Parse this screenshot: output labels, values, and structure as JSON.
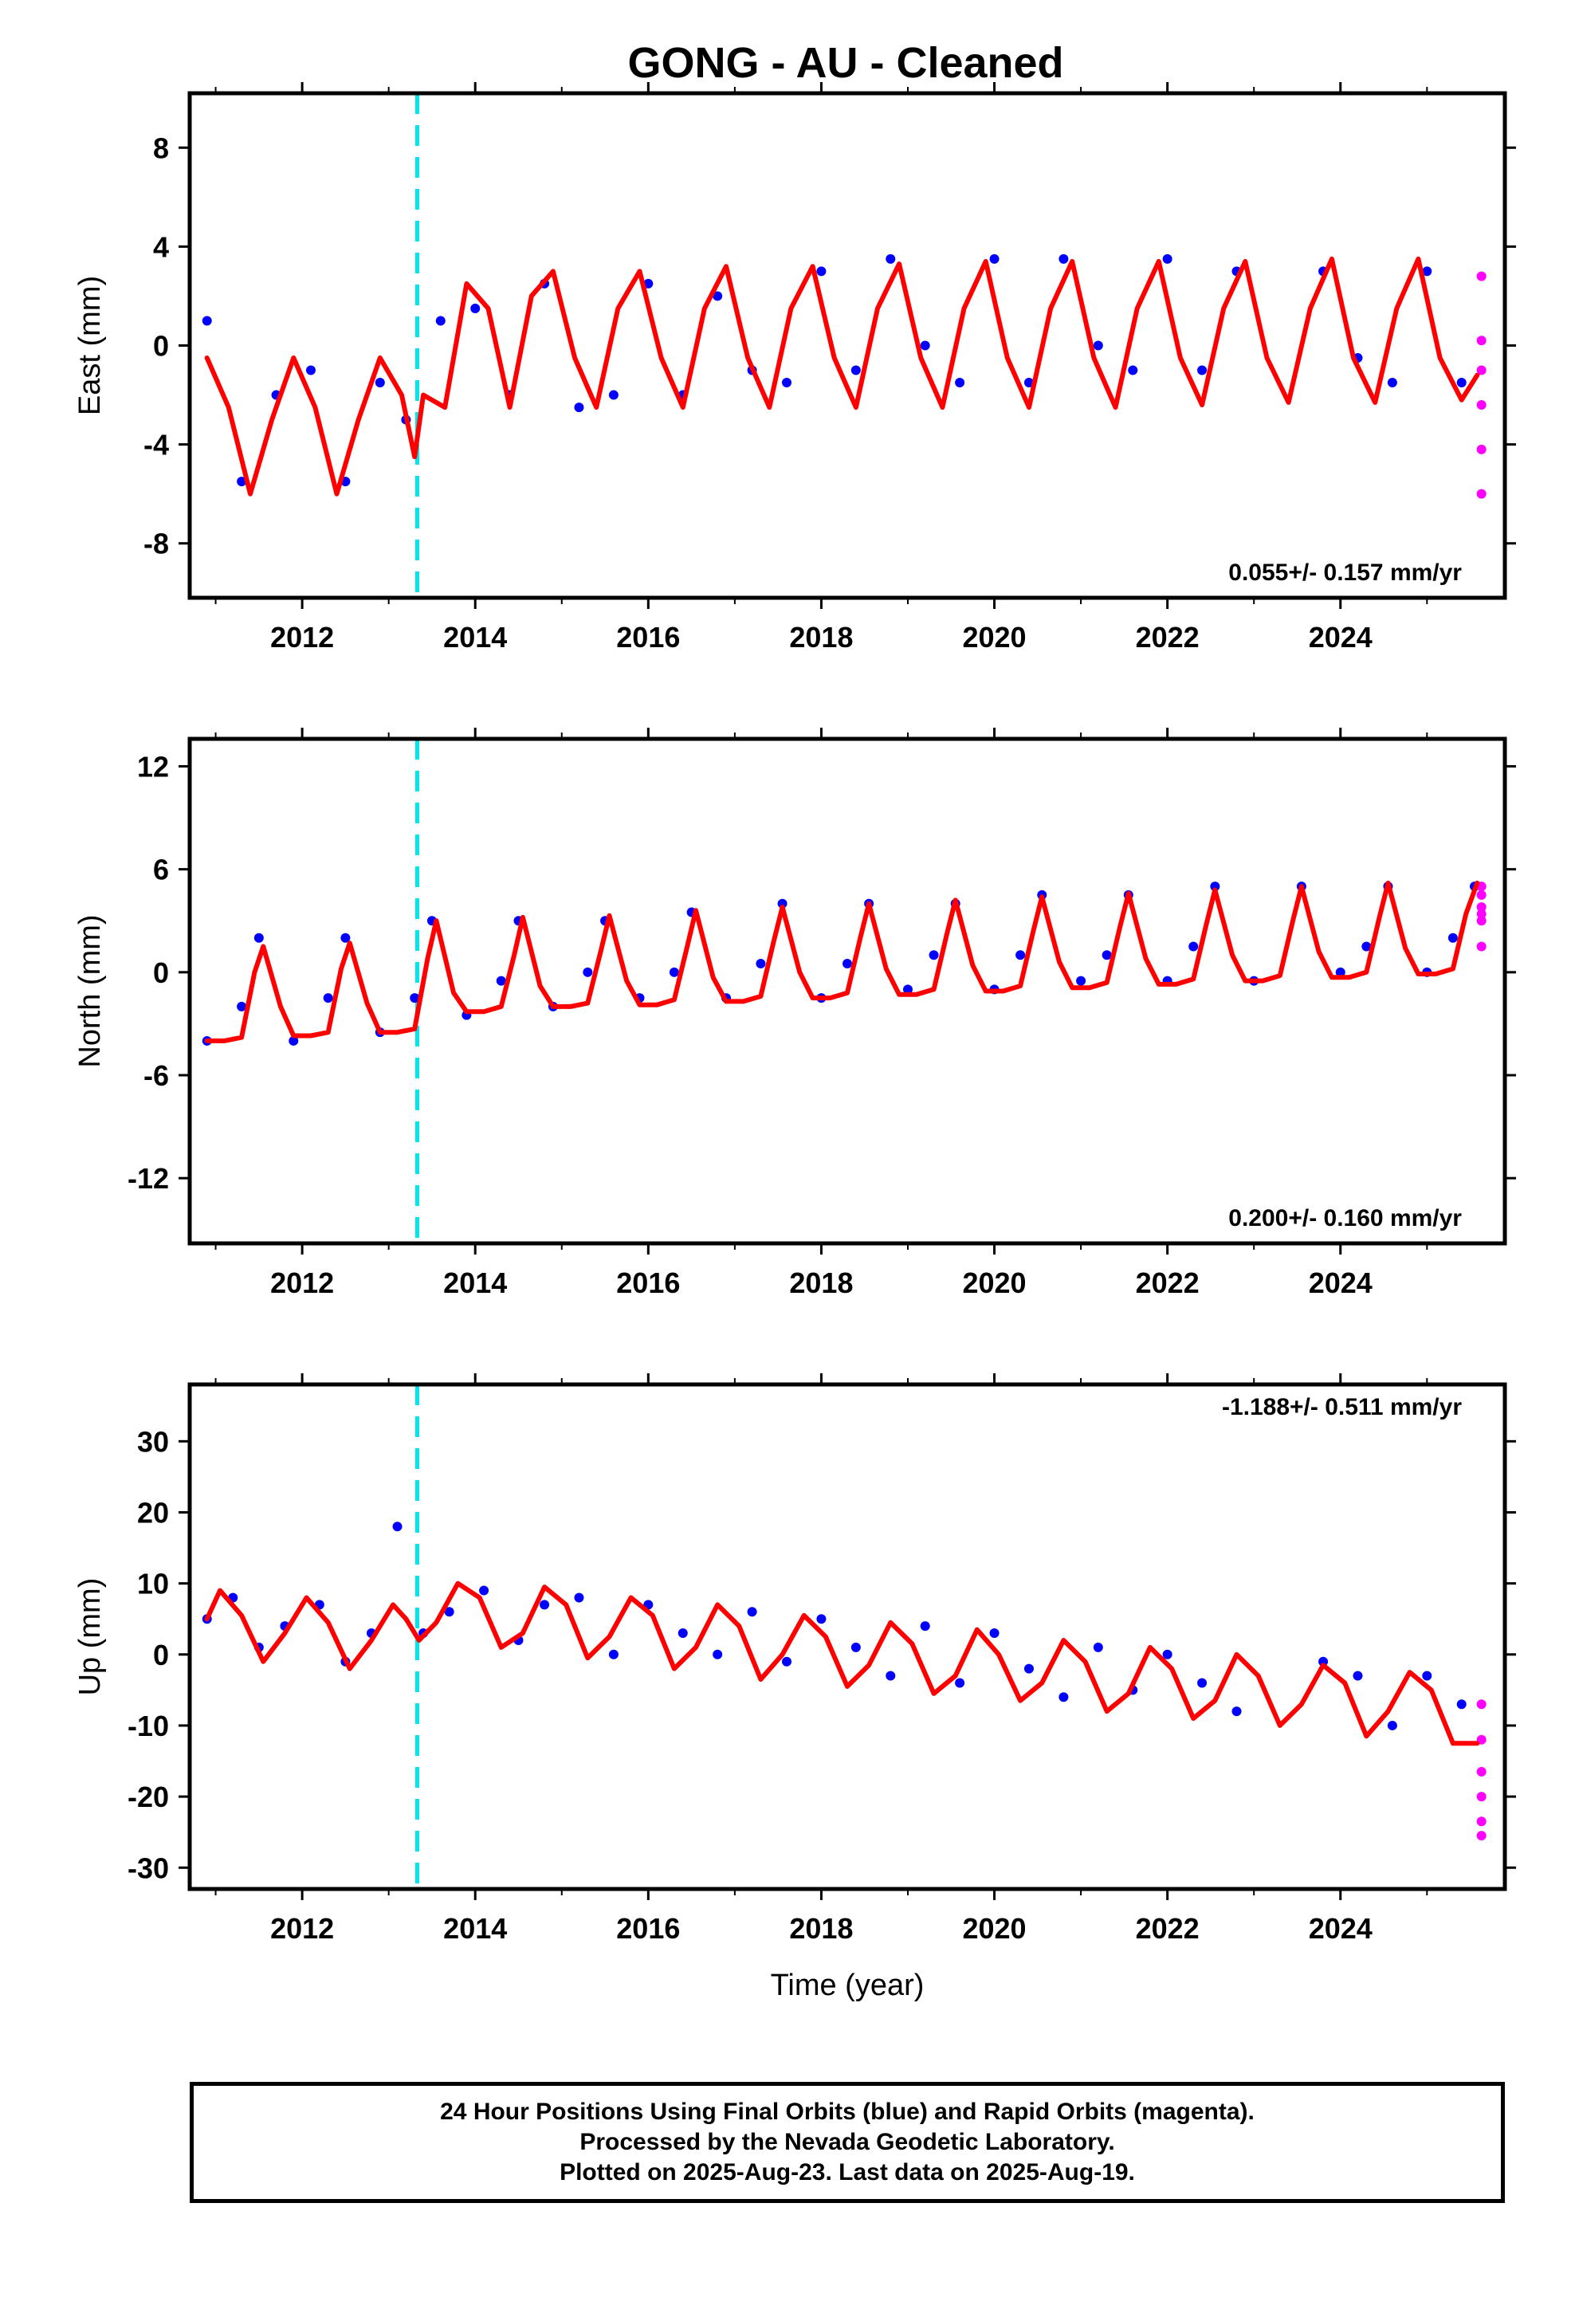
{
  "chart_data": [
    {
      "type": "scatter",
      "title": "GONG  - AU - Cleaned",
      "ylabel": "East (mm)",
      "xlabel": "",
      "xlim": [
        2010.7,
        2025.9
      ],
      "ylim": [
        -10.2,
        10.2
      ],
      "xticks": [
        2012,
        2014,
        2016,
        2018,
        2020,
        2022,
        2024
      ],
      "yticks": [
        -8,
        -4,
        0,
        4,
        8
      ],
      "rate_text": "0.055+/- 0.157 mm/yr",
      "rate_position": "bottom-right",
      "event_line_x": 2013.33,
      "series": [
        {
          "name": "Final Orbits",
          "color": "#0000ff",
          "kind": "points",
          "x": [
            2010.9,
            2011.3,
            2011.7,
            2012.1,
            2012.5,
            2012.9,
            2013.2,
            2013.6,
            2014.0,
            2014.4,
            2014.8,
            2015.2,
            2015.6,
            2016.0,
            2016.4,
            2016.8,
            2017.2,
            2017.6,
            2018.0,
            2018.4,
            2018.8,
            2019.2,
            2019.6,
            2020.0,
            2020.4,
            2020.8,
            2021.2,
            2021.6,
            2022.0,
            2022.4,
            2022.8,
            2023.8,
            2024.2,
            2024.6,
            2025.0,
            2025.4
          ],
          "y": [
            1.0,
            -5.5,
            -2.0,
            -1.0,
            -5.5,
            -1.5,
            -3.0,
            1.0,
            1.5,
            -2.0,
            2.5,
            -2.5,
            -2.0,
            2.5,
            -2.0,
            2.0,
            -1.0,
            -1.5,
            3.0,
            -1.0,
            3.5,
            0.0,
            -1.5,
            3.5,
            -1.5,
            3.5,
            0.0,
            -1.0,
            3.5,
            -1.0,
            3.0,
            3.0,
            -0.5,
            -1.5,
            3.0,
            -1.5
          ]
        },
        {
          "name": "Rapid Orbits",
          "color": "#ff00ff",
          "kind": "points",
          "x": [
            2025.63,
            2025.63,
            2025.63,
            2025.63,
            2025.63,
            2025.63
          ],
          "y": [
            2.8,
            0.2,
            -1.0,
            -2.4,
            -4.2,
            -6.0
          ]
        },
        {
          "name": "Model",
          "color": "#ff0000",
          "kind": "line",
          "x": [
            2010.9,
            2011.15,
            2011.4,
            2011.65,
            2011.9,
            2012.15,
            2012.4,
            2012.65,
            2012.9,
            2013.15,
            2013.3,
            2013.4,
            2013.65,
            2013.9,
            2014.15,
            2014.4,
            2014.65,
            2014.9,
            2015.15,
            2015.4,
            2015.65,
            2015.9,
            2016.15,
            2016.4,
            2016.65,
            2016.9,
            2017.15,
            2017.4,
            2017.65,
            2017.9,
            2018.15,
            2018.4,
            2018.65,
            2018.9,
            2019.15,
            2019.4,
            2019.65,
            2019.9,
            2020.15,
            2020.4,
            2020.65,
            2020.9,
            2021.15,
            2021.4,
            2021.65,
            2021.9,
            2022.15,
            2022.4,
            2022.65,
            2022.9,
            2023.15,
            2023.4,
            2023.65,
            2023.9,
            2024.15,
            2024.4,
            2024.65,
            2024.9,
            2025.15,
            2025.4,
            2025.58
          ],
          "y": [
            -0.5,
            -2.5,
            -6.0,
            -3.0,
            -0.5,
            -2.5,
            -6.0,
            -3.0,
            -0.5,
            -2.0,
            -4.5,
            -2.0,
            -2.5,
            2.5,
            1.5,
            -2.5,
            2.0,
            3.0,
            -0.5,
            -2.5,
            1.5,
            3.0,
            -0.5,
            -2.5,
            1.5,
            3.2,
            -0.5,
            -2.5,
            1.5,
            3.2,
            -0.5,
            -2.5,
            1.5,
            3.3,
            -0.5,
            -2.5,
            1.5,
            3.4,
            -0.5,
            -2.5,
            1.5,
            3.4,
            -0.5,
            -2.5,
            1.5,
            3.4,
            -0.5,
            -2.4,
            1.5,
            3.4,
            -0.5,
            -2.3,
            1.5,
            3.5,
            -0.5,
            -2.3,
            1.5,
            3.5,
            -0.5,
            -2.2,
            -1.2
          ]
        }
      ]
    },
    {
      "type": "scatter",
      "title": "",
      "ylabel": "North (mm)",
      "xlabel": "",
      "xlim": [
        2010.7,
        2025.9
      ],
      "ylim": [
        -15.8,
        13.6
      ],
      "xticks": [
        2012,
        2014,
        2016,
        2018,
        2020,
        2022,
        2024
      ],
      "yticks": [
        -12,
        -6,
        0,
        6,
        12
      ],
      "rate_text": "0.200+/- 0.160 mm/yr",
      "rate_position": "bottom-right",
      "event_line_x": 2013.33,
      "series": [
        {
          "name": "Final Orbits",
          "color": "#0000ff",
          "kind": "points",
          "x": [
            2010.9,
            2011.3,
            2011.5,
            2011.9,
            2012.3,
            2012.5,
            2012.9,
            2013.3,
            2013.5,
            2013.9,
            2014.3,
            2014.5,
            2014.9,
            2015.3,
            2015.5,
            2015.9,
            2016.3,
            2016.5,
            2016.9,
            2017.3,
            2017.55,
            2018.0,
            2018.3,
            2018.55,
            2019.0,
            2019.3,
            2019.55,
            2020.0,
            2020.3,
            2020.55,
            2021.0,
            2021.3,
            2021.55,
            2022.0,
            2022.3,
            2022.55,
            2023.0,
            2023.55,
            2024.0,
            2024.3,
            2024.55,
            2025.0,
            2025.3,
            2025.55
          ],
          "y": [
            -4.0,
            -2.0,
            2.0,
            -4.0,
            -1.5,
            2.0,
            -3.5,
            -1.5,
            3.0,
            -2.5,
            -0.5,
            3.0,
            -2.0,
            0.0,
            3.0,
            -1.5,
            0.0,
            3.5,
            -1.5,
            0.5,
            4.0,
            -1.5,
            0.5,
            4.0,
            -1.0,
            1.0,
            4.0,
            -1.0,
            1.0,
            4.5,
            -0.5,
            1.0,
            4.5,
            -0.5,
            1.5,
            5.0,
            -0.5,
            5.0,
            0.0,
            1.5,
            5.0,
            0.0,
            2.0,
            5.0
          ]
        },
        {
          "name": "Rapid Orbits",
          "color": "#ff00ff",
          "kind": "points",
          "x": [
            2025.63,
            2025.63,
            2025.63,
            2025.63,
            2025.63,
            2025.63
          ],
          "y": [
            5.0,
            4.5,
            3.8,
            3.4,
            3.0,
            1.5
          ]
        },
        {
          "name": "Model",
          "color": "#ff0000",
          "kind": "line",
          "x": [
            2010.9,
            2011.1,
            2011.3,
            2011.45,
            2011.55,
            2011.75,
            2011.9,
            2012.1,
            2012.3,
            2012.45,
            2012.55,
            2012.75,
            2012.9,
            2013.1,
            2013.3,
            2013.45,
            2013.55,
            2013.75,
            2013.9,
            2014.1,
            2014.3,
            2014.45,
            2014.55,
            2014.75,
            2014.9,
            2015.1,
            2015.3,
            2015.45,
            2015.55,
            2015.75,
            2015.9,
            2016.1,
            2016.3,
            2016.45,
            2016.55,
            2016.75,
            2016.9,
            2017.1,
            2017.3,
            2017.45,
            2017.55,
            2017.75,
            2017.9,
            2018.1,
            2018.3,
            2018.45,
            2018.55,
            2018.75,
            2018.9,
            2019.1,
            2019.3,
            2019.45,
            2019.55,
            2019.75,
            2019.9,
            2020.1,
            2020.3,
            2020.45,
            2020.55,
            2020.75,
            2020.9,
            2021.1,
            2021.3,
            2021.45,
            2021.55,
            2021.75,
            2021.9,
            2022.1,
            2022.3,
            2022.45,
            2022.55,
            2022.75,
            2022.9,
            2023.1,
            2023.3,
            2023.45,
            2023.55,
            2023.75,
            2023.9,
            2024.1,
            2024.3,
            2024.45,
            2024.55,
            2024.75,
            2024.9,
            2025.1,
            2025.3,
            2025.45,
            2025.58
          ],
          "y": [
            -4.0,
            -4.0,
            -3.8,
            0.0,
            1.5,
            -2.0,
            -3.7,
            -3.7,
            -3.5,
            0.2,
            1.7,
            -1.8,
            -3.5,
            -3.5,
            -3.3,
            0.8,
            3.0,
            -1.2,
            -2.3,
            -2.3,
            -2.0,
            1.0,
            3.2,
            -0.8,
            -2.0,
            -2.0,
            -1.8,
            1.2,
            3.3,
            -0.5,
            -1.9,
            -1.9,
            -1.6,
            1.5,
            3.6,
            -0.3,
            -1.7,
            -1.7,
            -1.4,
            1.8,
            3.8,
            0.0,
            -1.5,
            -1.5,
            -1.2,
            2.0,
            4.0,
            0.2,
            -1.3,
            -1.3,
            -1.0,
            2.2,
            4.2,
            0.4,
            -1.1,
            -1.1,
            -0.8,
            2.4,
            4.4,
            0.6,
            -0.9,
            -0.9,
            -0.6,
            2.6,
            4.6,
            0.8,
            -0.7,
            -0.7,
            -0.4,
            2.8,
            4.8,
            1.0,
            -0.5,
            -0.5,
            -0.2,
            3.0,
            5.0,
            1.2,
            -0.3,
            -0.3,
            0.0,
            3.2,
            5.2,
            1.4,
            -0.1,
            -0.1,
            0.2,
            3.4,
            5.2
          ]
        }
      ]
    },
    {
      "type": "scatter",
      "title": "",
      "ylabel": "Up (mm)",
      "xlabel": "Time (year)",
      "xlim": [
        2010.7,
        2025.9
      ],
      "ylim": [
        -33,
        38
      ],
      "xticks": [
        2012,
        2014,
        2016,
        2018,
        2020,
        2022,
        2024
      ],
      "yticks": [
        -30,
        -20,
        -10,
        0,
        10,
        20,
        30
      ],
      "rate_text": "-1.188+/- 0.511 mm/yr",
      "rate_position": "top-right",
      "event_line_x": 2013.33,
      "series": [
        {
          "name": "Final Orbits",
          "color": "#0000ff",
          "kind": "points",
          "x": [
            2010.9,
            2011.2,
            2011.5,
            2011.8,
            2012.2,
            2012.5,
            2012.8,
            2013.1,
            2013.4,
            2013.7,
            2014.1,
            2014.5,
            2014.8,
            2015.2,
            2015.6,
            2016.0,
            2016.4,
            2016.8,
            2017.2,
            2017.6,
            2018.0,
            2018.4,
            2018.8,
            2019.2,
            2019.6,
            2020.0,
            2020.4,
            2020.8,
            2021.2,
            2021.6,
            2022.0,
            2022.4,
            2022.8,
            2023.8,
            2024.2,
            2024.6,
            2025.0,
            2025.4
          ],
          "y": [
            5.0,
            8.0,
            1.0,
            4.0,
            7.0,
            -1.0,
            3.0,
            18.0,
            3.0,
            6.0,
            9.0,
            2.0,
            7.0,
            8.0,
            0.0,
            7.0,
            3.0,
            0.0,
            6.0,
            -1.0,
            5.0,
            1.0,
            -3.0,
            4.0,
            -4.0,
            3.0,
            -2.0,
            -6.0,
            1.0,
            -5.0,
            0.0,
            -4.0,
            -8.0,
            -1.0,
            -3.0,
            -10.0,
            -3.0,
            -7.0
          ]
        },
        {
          "name": "Rapid Orbits",
          "color": "#ff00ff",
          "kind": "points",
          "x": [
            2025.63,
            2025.63,
            2025.63,
            2025.63,
            2025.63,
            2025.63
          ],
          "y": [
            -7.0,
            -12.0,
            -16.5,
            -20.0,
            -23.5,
            -25.5
          ]
        },
        {
          "name": "Model",
          "color": "#ff0000",
          "kind": "line",
          "x": [
            2010.9,
            2011.05,
            2011.3,
            2011.55,
            2011.8,
            2012.05,
            2012.3,
            2012.55,
            2012.8,
            2013.05,
            2013.2,
            2013.35,
            2013.55,
            2013.8,
            2014.05,
            2014.3,
            2014.55,
            2014.8,
            2015.05,
            2015.3,
            2015.55,
            2015.8,
            2016.05,
            2016.3,
            2016.55,
            2016.8,
            2017.05,
            2017.3,
            2017.55,
            2017.8,
            2018.05,
            2018.3,
            2018.55,
            2018.8,
            2019.05,
            2019.3,
            2019.55,
            2019.8,
            2020.05,
            2020.3,
            2020.55,
            2020.8,
            2021.05,
            2021.3,
            2021.55,
            2021.8,
            2022.05,
            2022.3,
            2022.55,
            2022.8,
            2023.05,
            2023.3,
            2023.55,
            2023.8,
            2024.05,
            2024.3,
            2024.55,
            2024.8,
            2025.05,
            2025.3,
            2025.58
          ],
          "y": [
            5.0,
            9.0,
            5.5,
            -1.0,
            3.0,
            8.0,
            4.5,
            -2.0,
            2.0,
            7.0,
            5.0,
            2.0,
            4.5,
            10.0,
            8.0,
            1.0,
            3.0,
            9.5,
            7.0,
            -0.5,
            2.5,
            8.0,
            5.5,
            -2.0,
            1.0,
            7.0,
            4.0,
            -3.5,
            0.0,
            5.5,
            2.5,
            -4.5,
            -1.5,
            4.5,
            1.5,
            -5.5,
            -3.0,
            3.5,
            0.0,
            -6.5,
            -4.0,
            2.0,
            -1.0,
            -8.0,
            -5.5,
            1.0,
            -2.0,
            -9.0,
            -6.5,
            0.0,
            -3.0,
            -10.0,
            -7.0,
            -1.5,
            -4.0,
            -11.5,
            -8.0,
            -2.5,
            -5.0,
            -12.5,
            -12.5
          ]
        }
      ]
    }
  ],
  "footer": {
    "line1": "24 Hour Positions Using Final Orbits (blue) and Rapid Orbits (magenta).",
    "line2": "Processed by the Nevada Geodetic Laboratory.",
    "line3": "Plotted on 2025-Aug-23. Last data on 2025-Aug-19."
  },
  "colors": {
    "final_points": "#0000ff",
    "rapid_points": "#ff00ff",
    "model_line": "#ff0000",
    "event_line": "#00e5ee"
  }
}
